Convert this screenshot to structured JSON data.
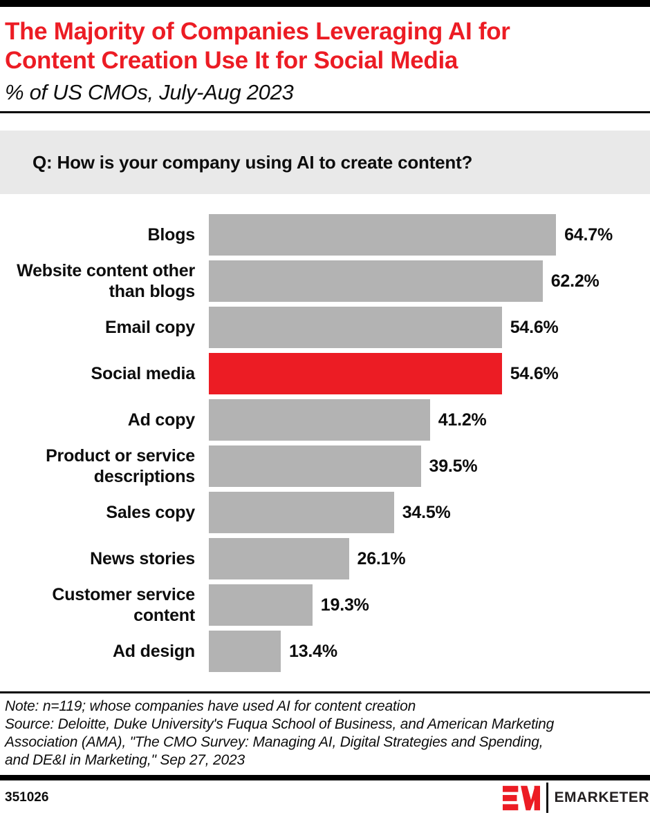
{
  "header": {
    "title": "The Majority of Companies Leveraging AI for\nContent Creation Use It for Social Media",
    "subtitle": "% of US CMOs, July-Aug 2023",
    "title_color": "#ec1c24"
  },
  "question": {
    "text": "Q: How is your company using AI to create content?"
  },
  "chart_data": {
    "type": "bar",
    "orientation": "horizontal",
    "title": "The Majority of Companies Leveraging AI for Content Creation Use It for Social Media",
    "subtitle": "% of US CMOs, July-Aug 2023",
    "categories": [
      "Blogs",
      "Website content other\nthan blogs",
      "Email copy",
      "Social media",
      "Ad copy",
      "Product or service\ndescriptions",
      "Sales copy",
      "News stories",
      "Customer service\ncontent",
      "Ad design"
    ],
    "values": [
      64.7,
      62.2,
      54.6,
      54.6,
      41.2,
      39.5,
      34.5,
      26.1,
      19.3,
      13.4
    ],
    "value_labels": [
      "64.7%",
      "62.2%",
      "54.6%",
      "54.6%",
      "41.2%",
      "39.5%",
      "34.5%",
      "26.1%",
      "19.3%",
      "13.4%"
    ],
    "highlight_index": 3,
    "highlight_category": "Social media",
    "bar_color": "#b3b3b3",
    "highlight_color": "#ec1c24",
    "xlim": [
      0,
      100
    ],
    "grid": false,
    "legend": false,
    "value_labels_position": "end-of-bar"
  },
  "notes": {
    "note": "Note: n=119; whose companies have used AI for content creation",
    "source": "Source: Deloitte, Duke University's Fuqua School of Business, and American Marketing\nAssociation (AMA), \"The CMO Survey: Managing AI, Digital Strategies and Spending,\nand DE&I in Marketing,\" Sep 27, 2023"
  },
  "footer": {
    "chart_id": "351026",
    "brand": "EMARKETER"
  }
}
